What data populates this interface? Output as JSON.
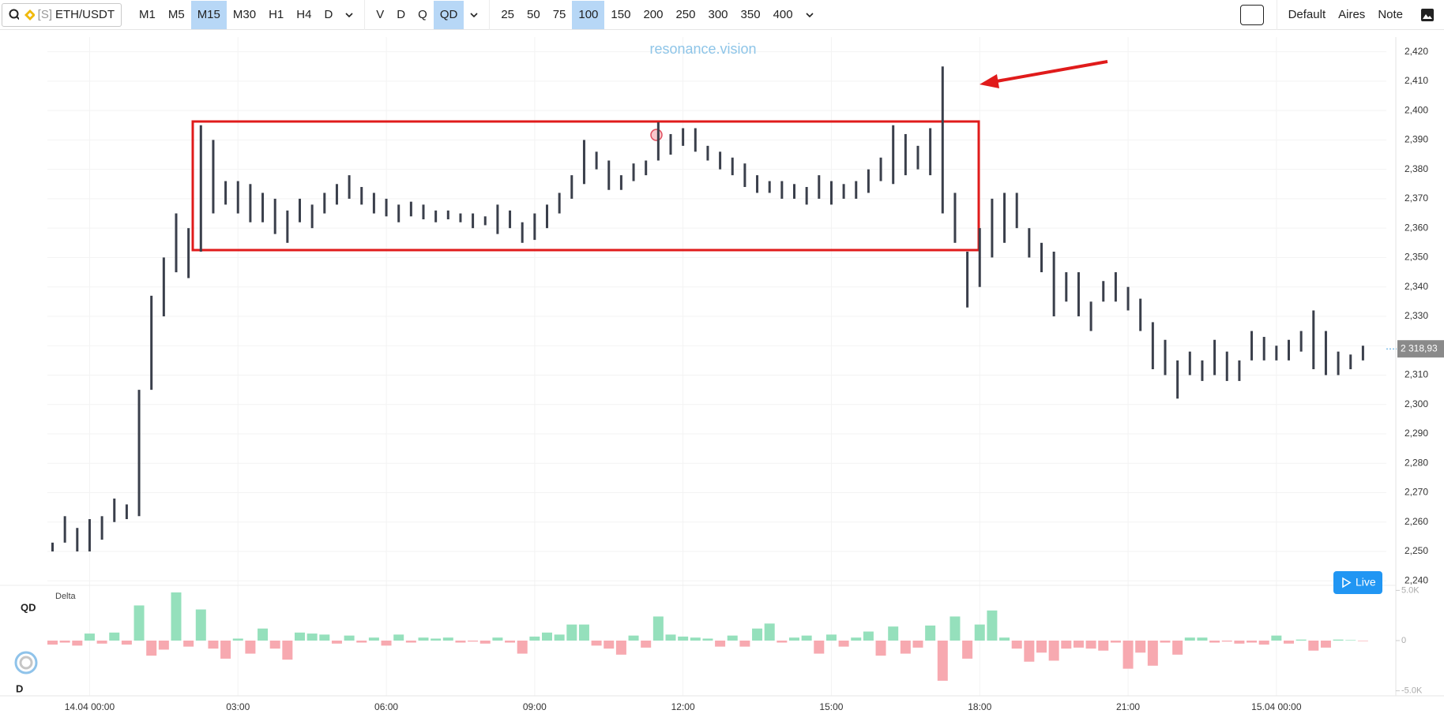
{
  "toolbar": {
    "symbol_prefix": "[S]",
    "symbol": "ETH/USDT",
    "timeframes": [
      "M1",
      "M5",
      "M15",
      "M30",
      "H1",
      "H4",
      "D"
    ],
    "timeframe_active": 2,
    "modes": [
      "V",
      "D",
      "Q",
      "QD"
    ],
    "mode_active": 3,
    "scales": [
      "25",
      "50",
      "75",
      "100",
      "150",
      "200",
      "250",
      "300",
      "350",
      "400"
    ],
    "scale_active": 3,
    "presets": [
      "Default",
      "Aires",
      "Note"
    ]
  },
  "watermark": "resonance.vision",
  "live_button": "Live",
  "side_labels": [
    "QD",
    "D"
  ],
  "chart_data": [
    {
      "type": "range",
      "color": "#3a3f4b",
      "grid": true,
      "categories": [
        null,
        null,
        null,
        "14.04 00:00",
        null,
        null,
        null,
        null,
        null,
        null,
        null,
        null,
        null,
        null,
        null,
        "03:00",
        null,
        null,
        null,
        null,
        null,
        null,
        null,
        null,
        null,
        null,
        null,
        "06:00",
        null,
        null,
        null,
        null,
        null,
        null,
        null,
        null,
        null,
        null,
        null,
        "09:00",
        null,
        null,
        null,
        null,
        null,
        null,
        null,
        null,
        null,
        null,
        null,
        "12:00",
        null,
        null,
        null,
        null,
        null,
        null,
        null,
        null,
        null,
        null,
        null,
        "15:00",
        null,
        null,
        null,
        null,
        null,
        null,
        null,
        null,
        null,
        null,
        null,
        "18:00",
        null,
        null,
        null,
        null,
        null,
        null,
        null,
        null,
        null,
        null,
        null,
        "21:00",
        null,
        null,
        null,
        null,
        null,
        null,
        null,
        null,
        null,
        null,
        null,
        "15.04 00:00",
        null,
        null,
        null,
        null,
        null,
        null,
        null
      ],
      "low": [
        2250,
        2253,
        2250,
        2250,
        2254,
        2260,
        2261,
        2262,
        2305,
        2330,
        2345,
        2343,
        2352,
        2365,
        2368,
        2365,
        2362,
        2362,
        2358,
        2355,
        2362,
        2360,
        2365,
        2368,
        2370,
        2368,
        2365,
        2364,
        2362,
        2364,
        2363,
        2362,
        2363,
        2362,
        2360,
        2361,
        2358,
        2360,
        2355,
        2356,
        2360,
        2365,
        2370,
        2375,
        2380,
        2373,
        2373,
        2376,
        2378,
        2383,
        2385,
        2388,
        2386,
        2383,
        2380,
        2378,
        2374,
        2372,
        2372,
        2370,
        2370,
        2368,
        2370,
        2368,
        2370,
        2370,
        2372,
        2376,
        2375,
        2378,
        2380,
        2378,
        2365,
        2355,
        2333,
        2340,
        2350,
        2355,
        2360,
        2350,
        2345,
        2330,
        2335,
        2330,
        2325,
        2335,
        2335,
        2332,
        2325,
        2312,
        2310,
        2302,
        2310,
        2308,
        2310,
        2308,
        2308,
        2315,
        2315,
        2315,
        2315,
        2318,
        2312,
        2310,
        2310,
        2312,
        2315
      ],
      "high": [
        2253,
        2262,
        2258,
        2261,
        2262,
        2268,
        2266,
        2305,
        2337,
        2350,
        2365,
        2360,
        2395,
        2390,
        2376,
        2376,
        2375,
        2372,
        2370,
        2366,
        2370,
        2368,
        2372,
        2375,
        2378,
        2374,
        2372,
        2370,
        2368,
        2369,
        2368,
        2366,
        2366,
        2365,
        2365,
        2364,
        2368,
        2366,
        2362,
        2365,
        2368,
        2372,
        2378,
        2390,
        2386,
        2383,
        2378,
        2382,
        2383,
        2396,
        2392,
        2394,
        2394,
        2388,
        2386,
        2384,
        2382,
        2378,
        2376,
        2376,
        2375,
        2374,
        2378,
        2376,
        2375,
        2376,
        2380,
        2384,
        2395,
        2392,
        2388,
        2394,
        2415,
        2372,
        2352,
        2360,
        2370,
        2372,
        2372,
        2360,
        2355,
        2352,
        2345,
        2345,
        2335,
        2342,
        2345,
        2340,
        2336,
        2328,
        2322,
        2315,
        2318,
        2315,
        2322,
        2318,
        2315,
        2325,
        2323,
        2320,
        2322,
        2325,
        2332,
        2325,
        2318,
        2317,
        2320
      ],
      "ylim": [
        2239,
        2425
      ],
      "yticks": [
        {
          "value": 2240,
          "label": "2,240"
        },
        {
          "value": 2250,
          "label": "2,250"
        },
        {
          "value": 2260,
          "label": "2,260"
        },
        {
          "value": 2270,
          "label": "2,270"
        },
        {
          "value": 2280,
          "label": "2,280"
        },
        {
          "value": 2290,
          "label": "2,290"
        },
        {
          "value": 2300,
          "label": "2,300"
        },
        {
          "value": 2310,
          "label": "2,310"
        },
        {
          "value": 2320,
          "label": "2,320"
        },
        {
          "value": 2330,
          "label": "2,330"
        },
        {
          "value": 2340,
          "label": "2,340"
        },
        {
          "value": 2350,
          "label": "2,350"
        },
        {
          "value": 2360,
          "label": "2,360"
        },
        {
          "value": 2370,
          "label": "2,370"
        },
        {
          "value": 2380,
          "label": "2,380"
        },
        {
          "value": 2390,
          "label": "2,390"
        },
        {
          "value": 2400,
          "label": "2,400"
        },
        {
          "value": 2410,
          "label": "2,410"
        },
        {
          "value": 2420,
          "label": "2,420"
        }
      ],
      "last_price": {
        "value": 2318.93,
        "label": "2 318,93"
      }
    },
    {
      "type": "bar",
      "title": "Delta",
      "colors": {
        "positive": "#95e0bc",
        "negative": "#f7a9b0"
      },
      "values": [
        -400,
        -200,
        -500,
        700,
        -300,
        800,
        -400,
        3500,
        -1500,
        -900,
        4800,
        -600,
        3100,
        -800,
        -1800,
        200,
        -1300,
        1200,
        -800,
        -1900,
        800,
        700,
        600,
        -300,
        500,
        -200,
        300,
        -500,
        600,
        -200,
        300,
        200,
        300,
        -200,
        -100,
        -300,
        300,
        -200,
        -1300,
        400,
        800,
        600,
        1600,
        1600,
        -500,
        -800,
        -1400,
        500,
        -700,
        2400,
        600,
        400,
        300,
        200,
        -600,
        500,
        -600,
        1200,
        1700,
        -200,
        300,
        500,
        -1300,
        600,
        -600,
        300,
        900,
        -1500,
        1400,
        -1300,
        -700,
        1500,
        -4000,
        2400,
        -1800,
        1600,
        3000,
        300,
        -800,
        -2100,
        -1200,
        -2000,
        -800,
        -700,
        -800,
        -1000,
        -200,
        -2800,
        -1200,
        -2500,
        -200,
        -1400,
        300,
        300,
        -200,
        -100,
        -300,
        -200,
        -400,
        500,
        -300,
        100,
        -1000,
        -700,
        100,
        50,
        -50
      ],
      "ylim": [
        -5500,
        5500
      ],
      "yticks": [
        {
          "value": 5000,
          "label": "5.0K"
        },
        0,
        {
          "value": -5000,
          "label": "-5.0K"
        }
      ]
    }
  ]
}
